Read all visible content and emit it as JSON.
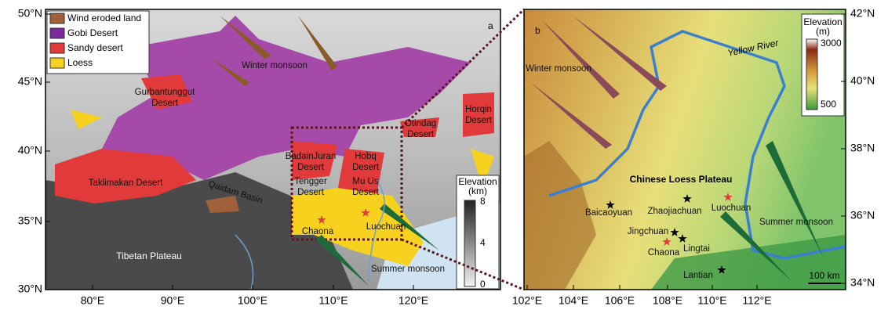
{
  "panel_a": {
    "label": "a",
    "legend": [
      "Wind eroded land",
      "Gobi Desert",
      "Sandy desert",
      "Loess"
    ],
    "lat_ticks": [
      "50°N",
      "45°N",
      "40°N",
      "35°N",
      "30°N"
    ],
    "lon_ticks": [
      "80°E",
      "90°E",
      "100°E",
      "110°E",
      "120°E"
    ],
    "places": [
      [
        "Winter monsoon"
      ],
      [
        "Gurbantunggut",
        "Desert"
      ],
      [
        "Otindag",
        "Desert"
      ],
      [
        "Horqin",
        "Desert"
      ],
      [
        "BadainJuran",
        "Desert"
      ],
      [
        "Hobq",
        "Desert"
      ],
      [
        "Tengger",
        "Desert"
      ],
      [
        "Mu Us",
        "Desert"
      ],
      [
        "Taklimakan Desert"
      ],
      [
        "Qaidam Basin"
      ],
      [
        "Chaona"
      ],
      [
        "Luochuan"
      ],
      [
        "Tibetan Plateau"
      ],
      [
        "Summer monsoon"
      ]
    ],
    "elevation_title": [
      "Elevation",
      "(km)"
    ],
    "elevation_ticks": [
      "8",
      "4",
      "0"
    ]
  },
  "panel_b": {
    "label": "b",
    "lat_ticks": [
      "42°N",
      "40°N",
      "38°N",
      "36°N",
      "34°N"
    ],
    "lon_ticks": [
      "102°E",
      "104°E",
      "106°E",
      "108°E",
      "110°E",
      "112°E"
    ],
    "places": [
      "Yellow River",
      "Winter monsoon",
      "Chinese Loess Plateau",
      "Baicaoyuan",
      "Zhaojiachuan",
      "Luochuan",
      "Jingchuan",
      "Chaona",
      "Lingtai",
      "Summer monsoon",
      "Lantian"
    ],
    "elevation_title": [
      "Elevation",
      "(m)"
    ],
    "elevation_ticks": [
      "3000",
      "500"
    ],
    "scale_bar": "100 km"
  }
}
